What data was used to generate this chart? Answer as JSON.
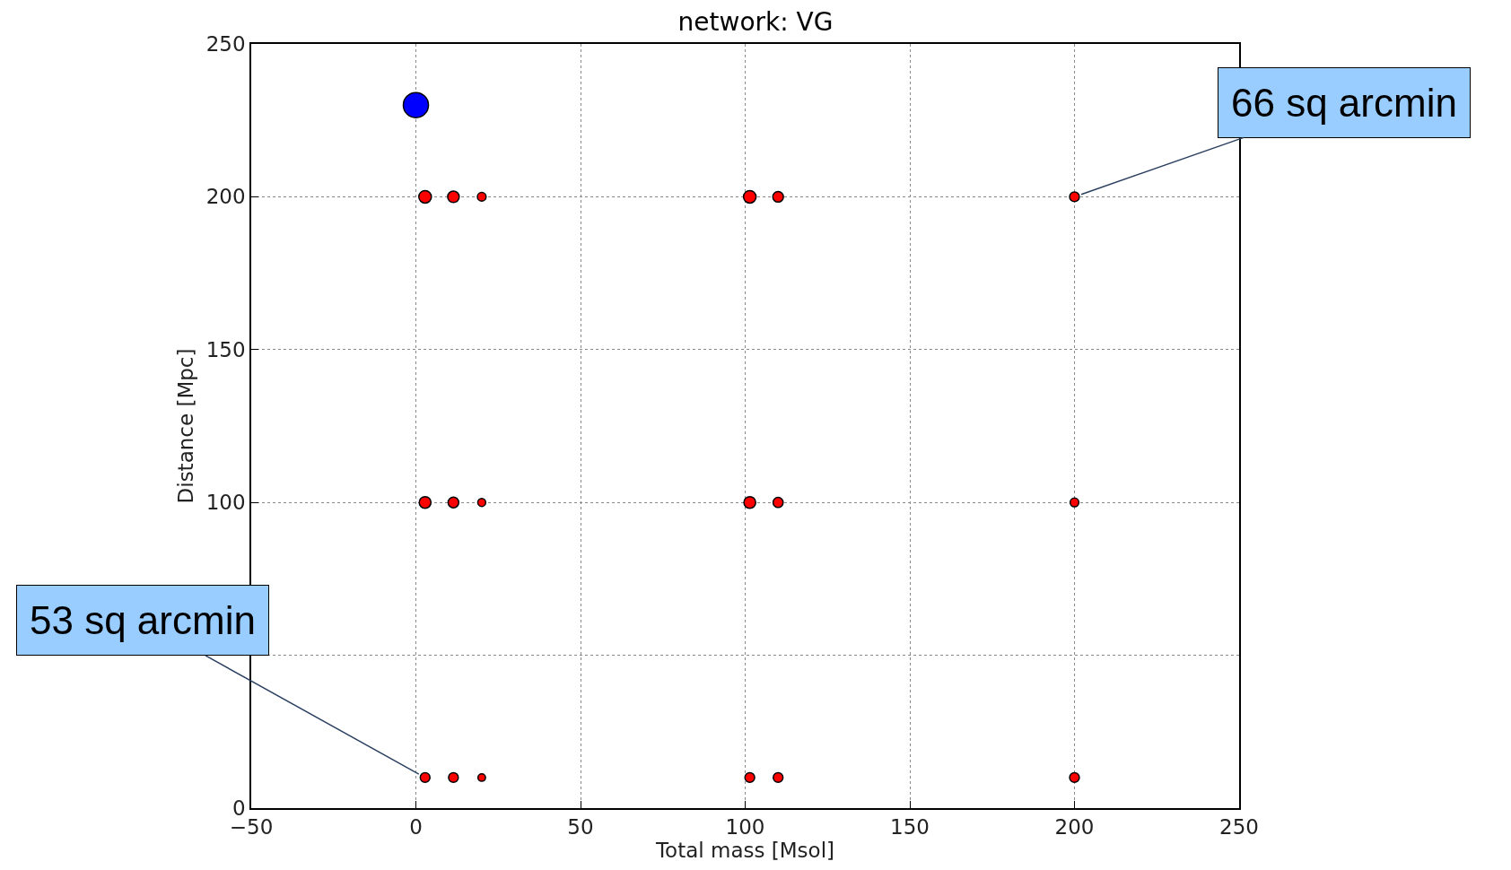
{
  "chart_data": {
    "type": "bubble",
    "title": "network: VG",
    "xlabel": "Total mass [Msol]",
    "ylabel": "Distance [Mpc]",
    "series": [
      {
        "color": "#0000ff",
        "x": [
          0
        ],
        "values": [
          230
        ],
        "sizes": [
          1
        ]
      },
      {
        "color": "#ff0000",
        "x": [
          2.8,
          11.4,
          20,
          101.4,
          110,
          200,
          2.8,
          11.4,
          20,
          101.4,
          110,
          200,
          2.8,
          11.4,
          20,
          101.4,
          110,
          200
        ],
        "values": [
          200,
          200,
          200,
          200,
          200,
          200,
          100,
          100,
          100,
          100,
          100,
          100,
          10,
          10,
          10,
          10,
          10,
          10
        ],
        "sizes": [
          0.25,
          0.21,
          0.12,
          0.25,
          0.18,
          0.15,
          0.22,
          0.18,
          0.1,
          0.22,
          0.16,
          0.12,
          0.15,
          0.15,
          0.09,
          0.15,
          0.15,
          0.15
        ]
      }
    ],
    "annotations": [
      {
        "text": "66 sq arcmin",
        "x": 200,
        "y": 200
      },
      {
        "text": "53 sq arcmin",
        "x": 2.8,
        "y": 10
      }
    ],
    "xlim": [
      -50,
      250
    ],
    "xticks": [
      {
        "value": -50,
        "label": "−50"
      },
      0,
      50,
      100,
      150,
      200,
      250
    ],
    "ylim": [
      0,
      250
    ],
    "yticks": [
      0,
      {
        "value": 50,
        "label": null
      },
      100,
      150,
      200,
      250
    ],
    "grid": true,
    "marker": "circle"
  }
}
